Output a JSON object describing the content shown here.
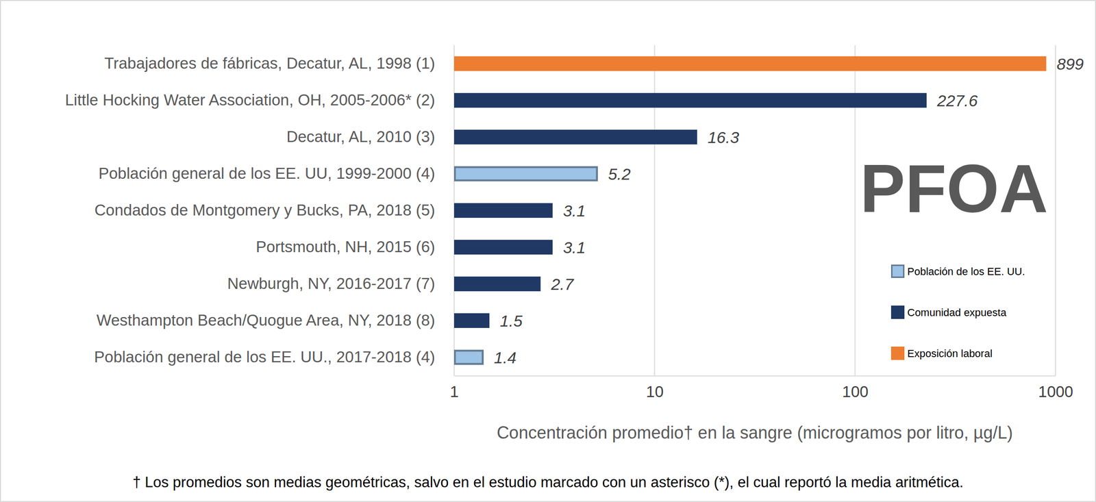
{
  "chart_data": {
    "type": "bar",
    "orientation": "horizontal",
    "log": "x",
    "title": "PFOA",
    "categories": [
      "Trabajadores de fábricas, Decatur, AL, 1998  (1)",
      "Little Hocking Water Association, OH, 2005-2006*  (2)",
      "Decatur, AL, 2010 (3)",
      "Población general de los EE. UU, 1999-2000  (4)",
      "Condados de Montgomery y Bucks, PA, 2018  (5)",
      "Portsmouth, NH, 2015 (6)",
      "Newburgh, NY, 2016-2017 (7)",
      "Westhampton Beach/Quogue Area, NY, 2018 (8)",
      "Población general de los EE. UU., 2017-2018  (4)"
    ],
    "series": [
      {
        "name": "Población de los EE. UU.",
        "color": "#9dc3e6",
        "values": [
          null,
          null,
          null,
          5.2,
          null,
          null,
          null,
          null,
          1.4
        ]
      },
      {
        "name": "Comunidad expuesta",
        "color": "#1f3864",
        "values": [
          null,
          227.6,
          16.3,
          null,
          3.1,
          3.1,
          2.7,
          1.5,
          null
        ]
      },
      {
        "name": "Exposición laboral",
        "color": "#ed7d31",
        "values": [
          899,
          null,
          null,
          null,
          null,
          null,
          null,
          null,
          null
        ]
      }
    ],
    "xlim": [
      1,
      1000
    ],
    "xticks": [
      1,
      10,
      100,
      1000
    ],
    "x_label": "Concentración promedio† en la sangre (microgramos por litro, µg/L)",
    "footnote": "† Los promedios son medias geométricas, salvo en el estudio marcado con un asterisco (*), el cual reportó la media aritmética.",
    "grid": true,
    "data_labels": true,
    "legend": "lower right"
  }
}
